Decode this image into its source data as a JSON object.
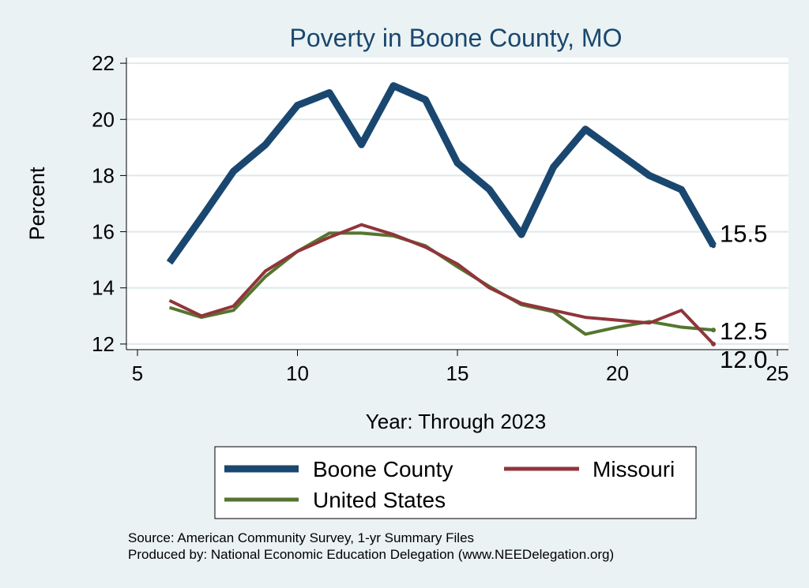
{
  "chart_data": {
    "type": "line",
    "title": "Poverty in Boone County, MO",
    "xlabel": "Year: Through 2023",
    "ylabel": "Percent",
    "xlim": [
      5,
      25
    ],
    "ylim": [
      11.8,
      22.2
    ],
    "x_ticks": [
      5,
      10,
      15,
      20,
      25
    ],
    "y_ticks": [
      12,
      14,
      16,
      18,
      20,
      22
    ],
    "grid": true,
    "legend_position": "bottom",
    "series": [
      {
        "name": "Boone County",
        "color": "#1a476f",
        "x": [
          6,
          7,
          8,
          9,
          10,
          11,
          12,
          13,
          14,
          15,
          16,
          17,
          18,
          19,
          21,
          22,
          23
        ],
        "values": [
          14.9,
          16.5,
          18.15,
          19.1,
          20.5,
          20.95,
          19.1,
          21.2,
          20.7,
          18.45,
          17.5,
          15.9,
          18.3,
          19.65,
          18.0,
          17.5,
          15.5
        ],
        "end_label": "15.5"
      },
      {
        "name": "Missouri",
        "color": "#90353b",
        "x": [
          6,
          7,
          8,
          9,
          10,
          11,
          12,
          13,
          14,
          15,
          16,
          17,
          18,
          19,
          20,
          21,
          22,
          23
        ],
        "values": [
          13.55,
          13.0,
          13.35,
          14.6,
          15.3,
          15.8,
          16.25,
          15.9,
          15.45,
          14.85,
          14.0,
          13.45,
          13.2,
          12.95,
          12.85,
          12.75,
          13.2,
          12.0
        ],
        "end_label": "12.0"
      },
      {
        "name": "United States",
        "color": "#55752f",
        "x": [
          6,
          7,
          8,
          9,
          10,
          11,
          12,
          13,
          14,
          15,
          16,
          17,
          18,
          19,
          20,
          21,
          22,
          23
        ],
        "values": [
          13.3,
          12.95,
          13.2,
          14.4,
          15.3,
          15.95,
          15.95,
          15.85,
          15.5,
          14.75,
          14.05,
          13.4,
          13.15,
          12.35,
          12.6,
          12.8,
          12.6,
          12.5
        ],
        "end_label": "12.5"
      }
    ],
    "notes": [
      "Source: American Community Survey, 1-yr Summary Files",
      "Produced by: National Economic Education Delegation (www.NEEDelegation.org)"
    ]
  }
}
